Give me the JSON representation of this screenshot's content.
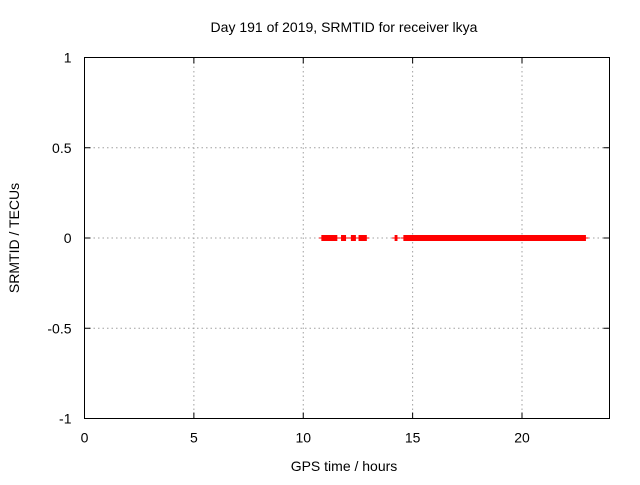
{
  "chart_data": {
    "type": "scatter",
    "title": "Day 191 of 2019, SRMTID for receiver lkya",
    "xlabel": "GPS time / hours",
    "ylabel": "SRMTID / TECUs",
    "xlim": [
      0,
      24
    ],
    "ylim": [
      -1,
      1
    ],
    "x_ticks": [
      0,
      5,
      10,
      15,
      20
    ],
    "x_tick_labels": [
      "0",
      "5",
      "10",
      "15",
      "20"
    ],
    "y_ticks": [
      -1,
      -0.5,
      0,
      0.5,
      1
    ],
    "y_tick_labels": [
      "-1",
      "-0.5",
      "0",
      "0.5",
      "1"
    ],
    "grid": true,
    "marker": "plus",
    "marker_color": "#ff0000",
    "series": [
      {
        "segments": [
          {
            "x_start": 10.85,
            "x_end": 11.55,
            "y": 0
          },
          {
            "x_start": 11.75,
            "x_end": 11.95,
            "y": 0
          },
          {
            "x_start": 12.2,
            "x_end": 12.4,
            "y": 0
          },
          {
            "x_start": 12.55,
            "x_end": 12.9,
            "y": 0
          },
          {
            "x_start": 14.2,
            "x_end": 14.3,
            "y": 0
          },
          {
            "x_start": 14.6,
            "x_end": 22.9,
            "y": 0
          }
        ],
        "step_hours": 0.0167
      }
    ]
  }
}
